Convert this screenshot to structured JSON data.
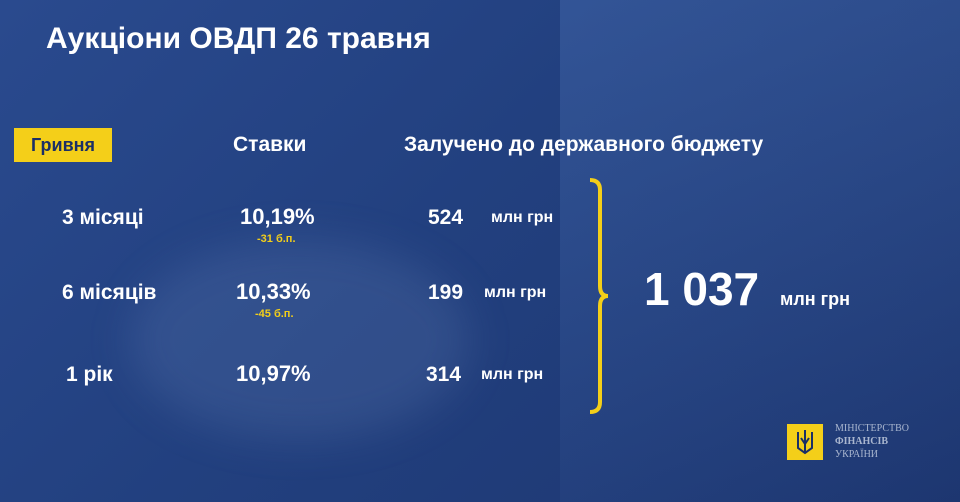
{
  "title": "Аукціони ОВДП 26 травня",
  "currency_badge": "Гривня",
  "headers": {
    "rates": "Ставки",
    "raised": "Залучено до державного бюджету"
  },
  "rows": [
    {
      "term": "3 місяці",
      "rate": "10,19%",
      "change": "-31 б.п.",
      "amount": "524",
      "unit": "млн грн"
    },
    {
      "term": "6 місяців",
      "rate": "10,33%",
      "change": "-45 б.п.",
      "amount": "199",
      "unit": "млн грн"
    },
    {
      "term": "1 рік",
      "rate": "10,97%",
      "change": "",
      "amount": "314",
      "unit": "млн грн"
    }
  ],
  "total": {
    "amount": "1 037",
    "unit": "млн грн"
  },
  "logo": {
    "line1": "МІНІСТЕРСТВО",
    "line2": "ФІНАНСІВ",
    "line3": "УКРАЇНИ"
  },
  "colors": {
    "accent": "#f4cf19",
    "background": "#22407f"
  }
}
